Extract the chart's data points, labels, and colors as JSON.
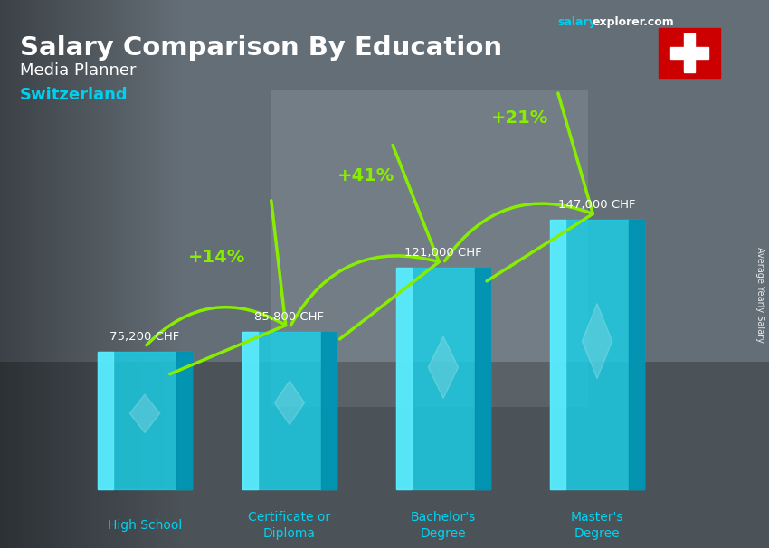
{
  "title_line1": "Salary Comparison By Education",
  "subtitle1": "Media Planner",
  "subtitle2": "Switzerland",
  "ylabel": "Average Yearly Salary",
  "categories": [
    "High School",
    "Certificate or\nDiploma",
    "Bachelor's\nDegree",
    "Master's\nDegree"
  ],
  "values": [
    75200,
    85800,
    121000,
    147000
  ],
  "value_labels": [
    "75,200 CHF",
    "85,800 CHF",
    "121,000 CHF",
    "147,000 CHF"
  ],
  "pct_labels": [
    "+14%",
    "+41%",
    "+21%"
  ],
  "bar_color_face": "#00c8e0",
  "bar_color_left": "#55e8ff",
  "bar_color_right": "#0088aa",
  "bar_color_dark": "#005f80",
  "background_color": "#5a6a78",
  "title_color": "#ffffff",
  "subtitle1_color": "#ffffff",
  "subtitle2_color": "#00cfff",
  "value_label_color": "#ffffff",
  "pct_color": "#aaff00",
  "arrow_color": "#88ee00",
  "xlabel_color": "#00cfff",
  "bar_width": 0.42,
  "ylim": [
    0,
    195000
  ],
  "figsize": [
    8.5,
    6.06
  ],
  "dpi": 100,
  "website_salary": "salary",
  "website_rest": "explorer.com",
  "flag_bg": "#cc0000"
}
